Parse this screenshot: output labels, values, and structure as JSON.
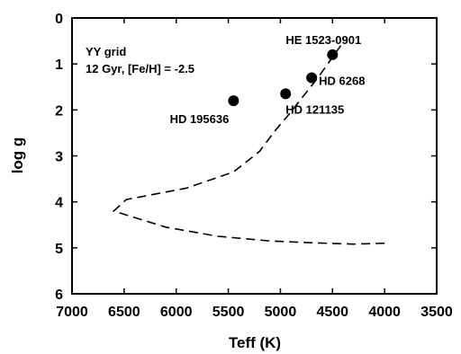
{
  "chart_data": {
    "type": "scatter",
    "xlabel": "Teff (K)",
    "ylabel": "log g",
    "xlim": [
      7000,
      3500
    ],
    "ylim": [
      0,
      6
    ],
    "x_ticks": [
      7000,
      6500,
      6000,
      5500,
      5000,
      4500,
      4000,
      3500
    ],
    "y_ticks": [
      0,
      1,
      2,
      3,
      4,
      5,
      6
    ],
    "x_reversed": true,
    "y_reversed": true,
    "grid": false,
    "annotation": {
      "line1": "YY grid",
      "line2": "12 Gyr,  [Fe/H]  = -2.5"
    },
    "isochrone": {
      "style": "dashed",
      "x": [
        4000,
        4300,
        4700,
        5100,
        5600,
        6100,
        6600,
        6480,
        5900,
        5450,
        5200,
        5050,
        4920,
        4780,
        4640,
        4420
      ],
      "y": [
        4.9,
        4.92,
        4.89,
        4.85,
        4.75,
        4.55,
        4.2,
        3.95,
        3.7,
        3.35,
        2.9,
        2.45,
        2.1,
        1.7,
        1.3,
        0.6
      ]
    },
    "stars": [
      {
        "name": "HE 1523-0901",
        "teff": 4500,
        "logg": 0.8
      },
      {
        "name": "HD 6268",
        "teff": 4700,
        "logg": 1.3
      },
      {
        "name": "HD 121135",
        "teff": 4950,
        "logg": 1.65
      },
      {
        "name": "HD 195636",
        "teff": 5450,
        "logg": 1.8
      }
    ]
  }
}
